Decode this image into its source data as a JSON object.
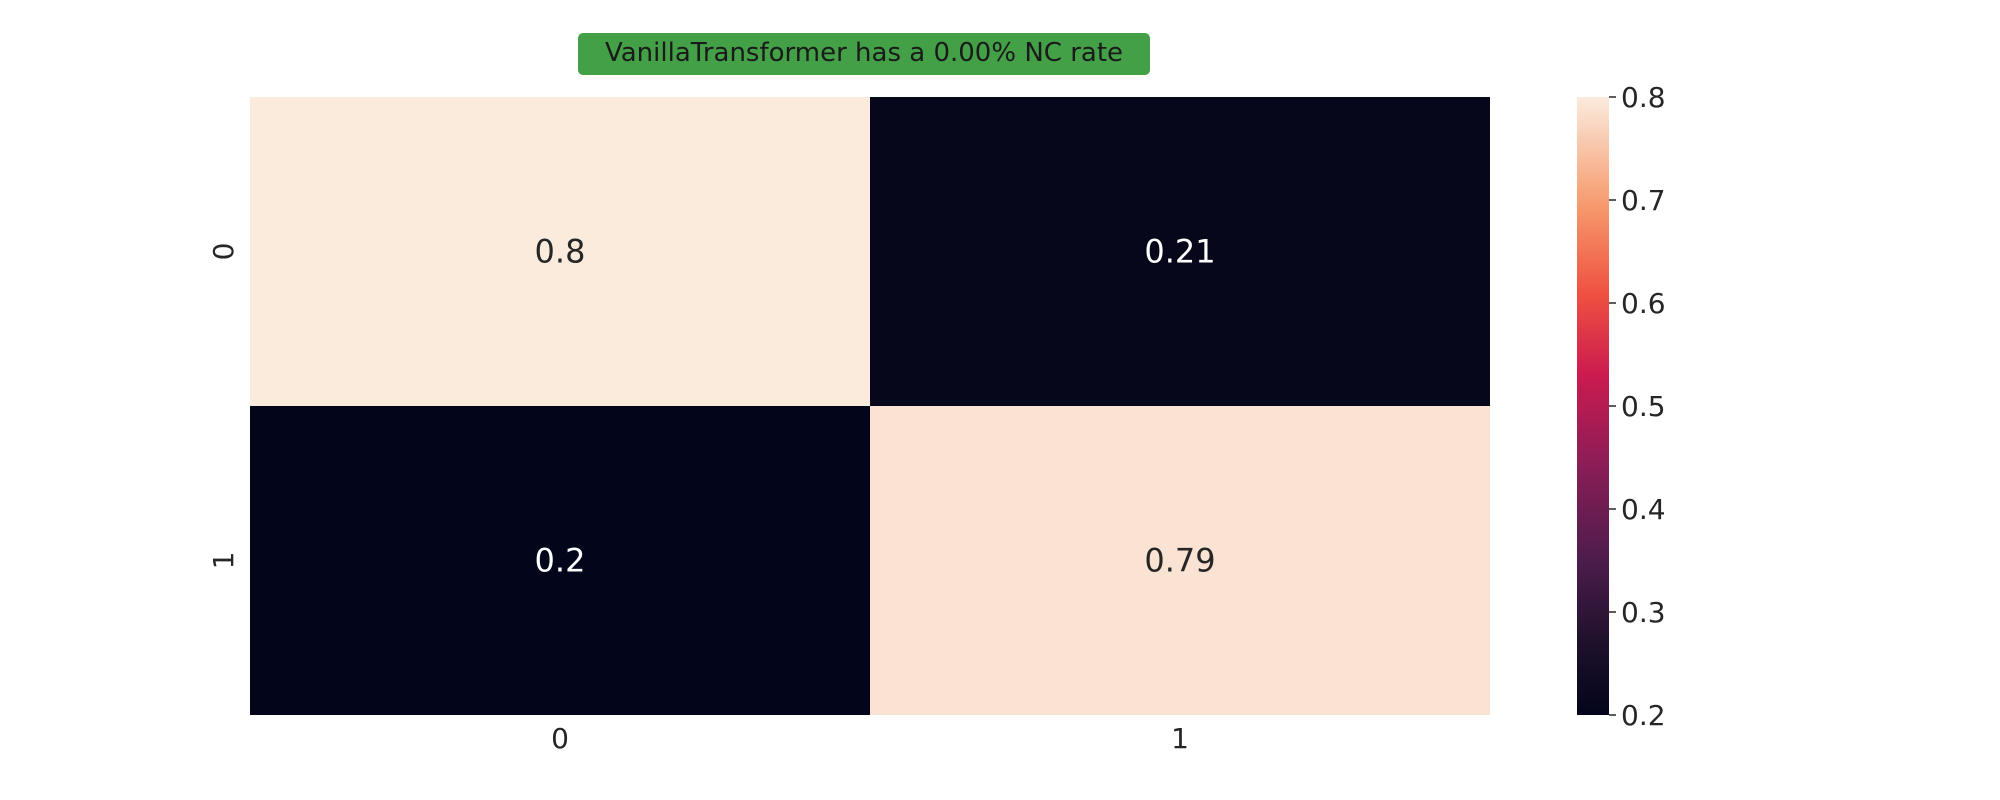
{
  "chart_data": {
    "type": "heatmap",
    "title": "VanillaTransformer has a 0.00% NC rate",
    "title_box_color": "#43a047",
    "xlabel": "",
    "ylabel": "",
    "x_categories": [
      "0",
      "1"
    ],
    "y_categories": [
      "0",
      "1"
    ],
    "values": [
      [
        0.8,
        0.21
      ],
      [
        0.2,
        0.79
      ]
    ],
    "cell_labels": [
      [
        "0.8",
        "0.21"
      ],
      [
        "0.2",
        "0.79"
      ]
    ],
    "colorbar": {
      "range": [
        0.2,
        0.8
      ],
      "ticks": [
        "0.2",
        "0.3",
        "0.4",
        "0.5",
        "0.6",
        "0.7",
        "0.8"
      ],
      "colormap": "rocket"
    },
    "grid": false
  }
}
